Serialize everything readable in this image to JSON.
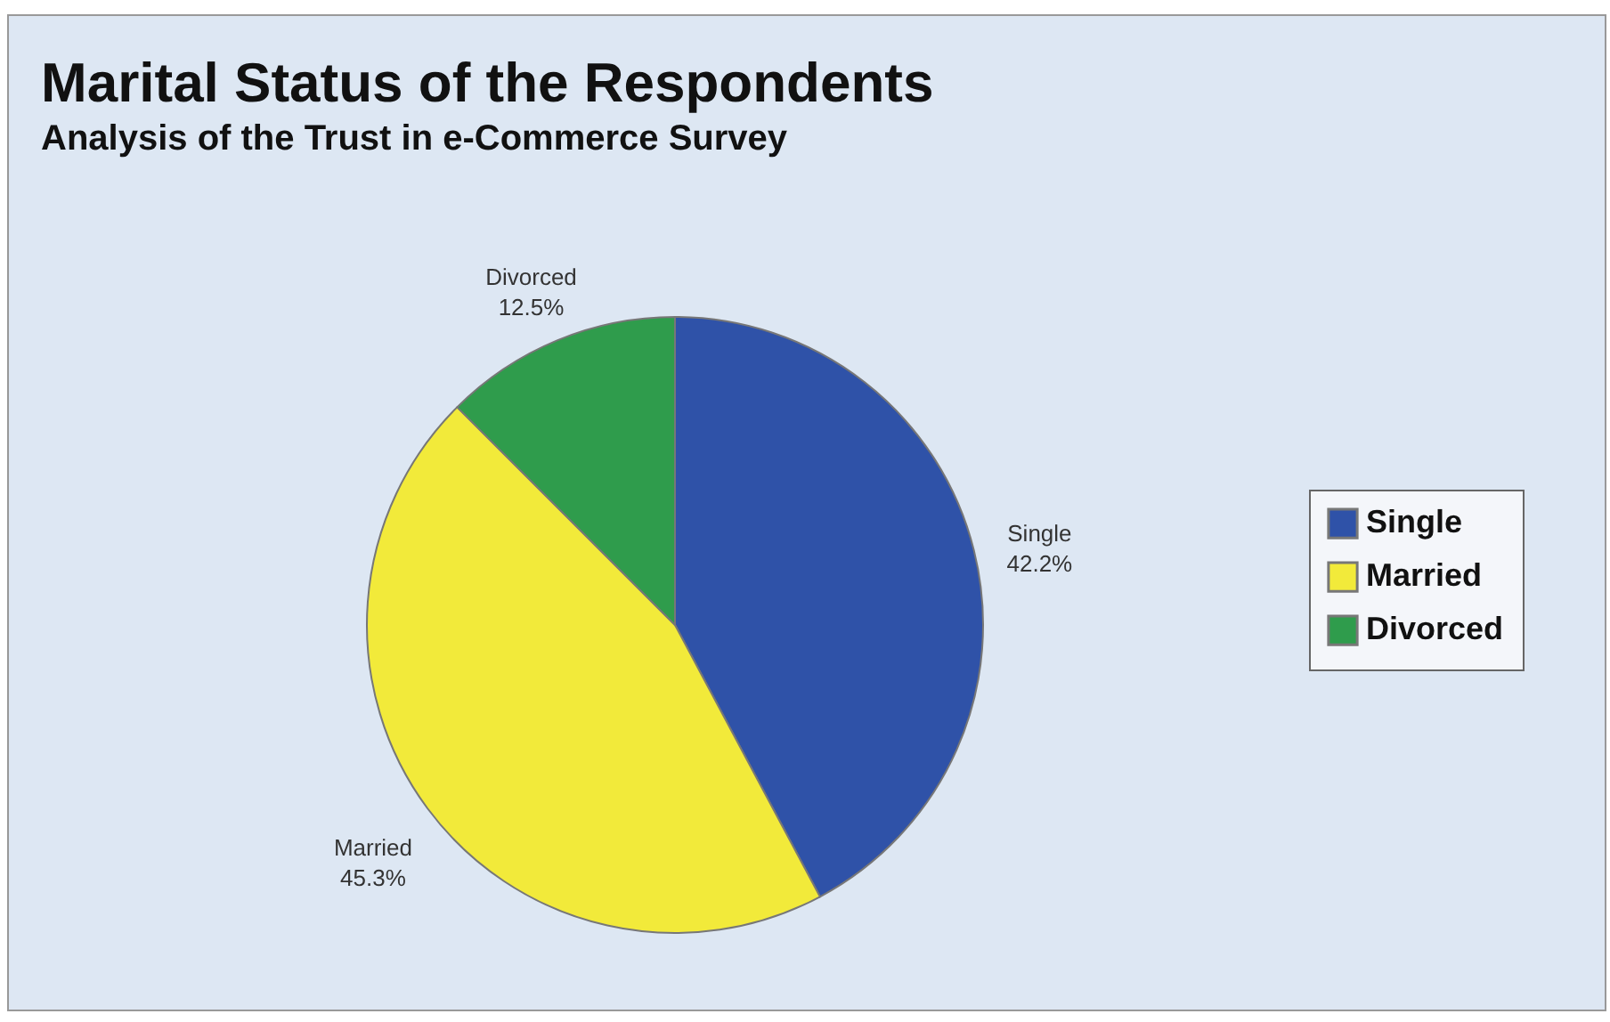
{
  "chart_data": {
    "type": "pie",
    "title": "Marital Status of the Respondents",
    "subtitle": "Analysis of the Trust in e-Commerce Survey",
    "categories": [
      "Single",
      "Married",
      "Divorced"
    ],
    "values": [
      42.2,
      45.3,
      12.5
    ],
    "colors": [
      "#2f52a8",
      "#f2ea3a",
      "#2f9c4c"
    ],
    "value_labels": [
      "42.2%",
      "45.3%",
      "12.5%"
    ],
    "legend": "right"
  }
}
